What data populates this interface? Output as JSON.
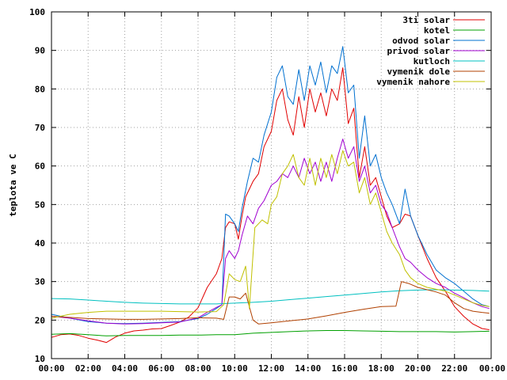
{
  "chart_data": {
    "type": "line",
    "ylabel": "teplota ve C",
    "xlabel": "",
    "title": "",
    "ylim": [
      10,
      100
    ],
    "xlim": [
      0,
      24
    ],
    "grid": true,
    "legend_position": "top-right",
    "y_ticks": [
      "10",
      "20",
      "30",
      "40",
      "50",
      "60",
      "70",
      "80",
      "90",
      "100"
    ],
    "x_ticks": [
      "00:00",
      "02:00",
      "04:00",
      "06:00",
      "08:00",
      "10:00",
      "12:00",
      "14:00",
      "16:00",
      "18:00",
      "20:00",
      "22:00",
      "00:00"
    ],
    "series": [
      {
        "name": "3ti solar",
        "color": "#e00000",
        "points": [
          [
            0,
            15.5
          ],
          [
            0.5,
            16.2
          ],
          [
            1,
            16.4
          ],
          [
            1.5,
            16
          ],
          [
            2,
            15.3
          ],
          [
            2.5,
            14.8
          ],
          [
            3,
            14.2
          ],
          [
            3.5,
            15.6
          ],
          [
            4,
            16.6
          ],
          [
            4.5,
            17.2
          ],
          [
            5,
            17.4
          ],
          [
            5.5,
            17.7
          ],
          [
            6,
            17.8
          ],
          [
            6.5,
            18.6
          ],
          [
            7,
            19.5
          ],
          [
            7.5,
            20.8
          ],
          [
            8,
            23.2
          ],
          [
            8.5,
            28.5
          ],
          [
            9,
            32
          ],
          [
            9.3,
            36
          ],
          [
            9.5,
            44
          ],
          [
            9.7,
            45.5
          ],
          [
            10,
            45
          ],
          [
            10.2,
            41
          ],
          [
            10.4,
            47
          ],
          [
            10.6,
            52
          ],
          [
            11,
            56
          ],
          [
            11.3,
            58
          ],
          [
            11.6,
            65
          ],
          [
            12,
            69
          ],
          [
            12.3,
            77
          ],
          [
            12.6,
            80
          ],
          [
            12.9,
            72
          ],
          [
            13.2,
            68
          ],
          [
            13.5,
            78
          ],
          [
            13.8,
            70
          ],
          [
            14.1,
            80
          ],
          [
            14.4,
            74
          ],
          [
            14.7,
            79
          ],
          [
            15,
            73
          ],
          [
            15.3,
            80
          ],
          [
            15.6,
            77
          ],
          [
            15.9,
            85.5
          ],
          [
            16.2,
            71
          ],
          [
            16.5,
            75
          ],
          [
            16.8,
            57
          ],
          [
            17.1,
            65
          ],
          [
            17.4,
            55
          ],
          [
            17.7,
            57
          ],
          [
            18,
            52
          ],
          [
            18.3,
            47
          ],
          [
            18.6,
            44
          ],
          [
            19,
            45
          ],
          [
            19.3,
            47.5
          ],
          [
            19.6,
            47
          ],
          [
            20,
            42
          ],
          [
            20.5,
            36
          ],
          [
            21,
            31
          ],
          [
            21.5,
            27.5
          ],
          [
            22,
            23.5
          ],
          [
            22.5,
            21
          ],
          [
            23,
            19
          ],
          [
            23.5,
            17.8
          ],
          [
            23.9,
            17.5
          ]
        ]
      },
      {
        "name": "kotel",
        "color": "#00a000",
        "points": [
          [
            0,
            16.3
          ],
          [
            1,
            16.5
          ],
          [
            2,
            16.2
          ],
          [
            3,
            15.9
          ],
          [
            4,
            16
          ],
          [
            5,
            16
          ],
          [
            6,
            16
          ],
          [
            7,
            16.1
          ],
          [
            8,
            16.1
          ],
          [
            9,
            16.2
          ],
          [
            10,
            16.2
          ],
          [
            11,
            16.6
          ],
          [
            12,
            16.8
          ],
          [
            13,
            17
          ],
          [
            14,
            17.2
          ],
          [
            15,
            17.3
          ],
          [
            16,
            17.3
          ],
          [
            17,
            17.2
          ],
          [
            18,
            17.1
          ],
          [
            19,
            17
          ],
          [
            20,
            17
          ],
          [
            21,
            17
          ],
          [
            22,
            16.9
          ],
          [
            23,
            17
          ],
          [
            23.9,
            17.1
          ]
        ]
      },
      {
        "name": "odvod solar",
        "color": "#0070d0",
        "points": [
          [
            0,
            21.5
          ],
          [
            1,
            20.5
          ],
          [
            2,
            19.6
          ],
          [
            3,
            19.2
          ],
          [
            4,
            19.1
          ],
          [
            5,
            19.2
          ],
          [
            6,
            19.4
          ],
          [
            7,
            19.6
          ],
          [
            8,
            20.4
          ],
          [
            8.5,
            21.5
          ],
          [
            9,
            23
          ],
          [
            9.3,
            24
          ],
          [
            9.5,
            47.5
          ],
          [
            9.7,
            47
          ],
          [
            10,
            45
          ],
          [
            10.2,
            43
          ],
          [
            10.4,
            49
          ],
          [
            10.7,
            56
          ],
          [
            11,
            62
          ],
          [
            11.3,
            61
          ],
          [
            11.6,
            68
          ],
          [
            12,
            74
          ],
          [
            12.3,
            83
          ],
          [
            12.6,
            86
          ],
          [
            12.9,
            78
          ],
          [
            13.2,
            76
          ],
          [
            13.5,
            85
          ],
          [
            13.8,
            77
          ],
          [
            14.1,
            86
          ],
          [
            14.4,
            81
          ],
          [
            14.7,
            87
          ],
          [
            15,
            79
          ],
          [
            15.3,
            86
          ],
          [
            15.6,
            84
          ],
          [
            15.9,
            91
          ],
          [
            16.2,
            79
          ],
          [
            16.5,
            81
          ],
          [
            16.8,
            62
          ],
          [
            17.1,
            73
          ],
          [
            17.4,
            60
          ],
          [
            17.7,
            63
          ],
          [
            18,
            57
          ],
          [
            18.3,
            53
          ],
          [
            18.6,
            50
          ],
          [
            19,
            45
          ],
          [
            19.3,
            54
          ],
          [
            19.6,
            47
          ],
          [
            20,
            42
          ],
          [
            20.5,
            37
          ],
          [
            21,
            33
          ],
          [
            21.5,
            31
          ],
          [
            22,
            29.5
          ],
          [
            22.5,
            27.5
          ],
          [
            23,
            25.5
          ],
          [
            23.5,
            24
          ],
          [
            23.9,
            23.5
          ]
        ]
      },
      {
        "name": "privod solar",
        "color": "#a000d0",
        "points": [
          [
            0,
            21
          ],
          [
            1,
            20.5
          ],
          [
            2,
            19.8
          ],
          [
            3,
            19.2
          ],
          [
            4,
            19
          ],
          [
            5,
            19.1
          ],
          [
            6,
            19.3
          ],
          [
            7,
            19.5
          ],
          [
            8,
            20.6
          ],
          [
            8.5,
            22
          ],
          [
            9,
            23.3
          ],
          [
            9.3,
            24
          ],
          [
            9.5,
            36
          ],
          [
            9.7,
            38
          ],
          [
            10,
            36
          ],
          [
            10.2,
            38
          ],
          [
            10.4,
            42
          ],
          [
            10.7,
            47
          ],
          [
            11,
            45
          ],
          [
            11.3,
            49
          ],
          [
            11.6,
            51
          ],
          [
            12,
            55
          ],
          [
            12.3,
            56
          ],
          [
            12.6,
            58
          ],
          [
            12.9,
            57
          ],
          [
            13.2,
            60
          ],
          [
            13.5,
            57
          ],
          [
            13.8,
            62
          ],
          [
            14.1,
            58
          ],
          [
            14.4,
            61
          ],
          [
            14.7,
            56
          ],
          [
            15,
            61
          ],
          [
            15.3,
            56
          ],
          [
            15.6,
            62
          ],
          [
            15.9,
            67
          ],
          [
            16.2,
            62
          ],
          [
            16.5,
            65
          ],
          [
            16.8,
            56
          ],
          [
            17.1,
            60
          ],
          [
            17.4,
            53
          ],
          [
            17.7,
            55
          ],
          [
            18,
            50
          ],
          [
            18.3,
            48
          ],
          [
            18.6,
            44
          ],
          [
            19,
            39
          ],
          [
            19.3,
            36
          ],
          [
            19.6,
            35
          ],
          [
            20,
            33
          ],
          [
            20.5,
            31
          ],
          [
            21,
            29.5
          ],
          [
            21.5,
            28.5
          ],
          [
            22,
            27
          ],
          [
            22.5,
            25.8
          ],
          [
            23,
            24.5
          ],
          [
            23.5,
            23.5
          ],
          [
            23.9,
            23
          ]
        ]
      },
      {
        "name": "kutloch",
        "color": "#00c0c0",
        "points": [
          [
            0,
            25.6
          ],
          [
            1,
            25.5
          ],
          [
            2,
            25.2
          ],
          [
            3,
            24.9
          ],
          [
            4,
            24.6
          ],
          [
            5,
            24.4
          ],
          [
            6,
            24.3
          ],
          [
            7,
            24.2
          ],
          [
            8,
            24.2
          ],
          [
            9,
            24.2
          ],
          [
            10,
            24.4
          ],
          [
            11,
            24.6
          ],
          [
            12,
            24.9
          ],
          [
            13,
            25.3
          ],
          [
            14,
            25.7
          ],
          [
            15,
            26.1
          ],
          [
            16,
            26.5
          ],
          [
            17,
            26.9
          ],
          [
            18,
            27.3
          ],
          [
            19,
            27.6
          ],
          [
            20,
            27.8
          ],
          [
            21,
            27.9
          ],
          [
            22,
            27.8
          ],
          [
            23,
            27.7
          ],
          [
            23.9,
            27.5
          ]
        ]
      },
      {
        "name": "vymenik dole",
        "color": "#b04000",
        "points": [
          [
            0,
            21
          ],
          [
            1,
            20.7
          ],
          [
            2,
            20.4
          ],
          [
            3,
            20.3
          ],
          [
            4,
            20.2
          ],
          [
            5,
            20.2
          ],
          [
            6,
            20.3
          ],
          [
            7,
            20.4
          ],
          [
            8,
            20.6
          ],
          [
            9,
            20.5
          ],
          [
            9.4,
            20.2
          ],
          [
            9.7,
            26
          ],
          [
            10,
            26
          ],
          [
            10.3,
            25.5
          ],
          [
            10.6,
            27
          ],
          [
            11,
            20
          ],
          [
            11.3,
            19
          ],
          [
            12,
            19.3
          ],
          [
            13,
            19.8
          ],
          [
            14,
            20.3
          ],
          [
            15,
            21.1
          ],
          [
            16,
            22
          ],
          [
            17,
            22.8
          ],
          [
            18,
            23.5
          ],
          [
            18.8,
            23.6
          ],
          [
            19.1,
            30
          ],
          [
            19.5,
            29.5
          ],
          [
            20,
            28.5
          ],
          [
            21,
            27.3
          ],
          [
            21.5,
            26.5
          ],
          [
            22,
            24.5
          ],
          [
            22.5,
            23
          ],
          [
            23,
            22.3
          ],
          [
            23.5,
            22
          ],
          [
            23.9,
            21.8
          ]
        ]
      },
      {
        "name": "vymenik nahore",
        "color": "#c0c000",
        "points": [
          [
            0,
            20.5
          ],
          [
            1,
            21.5
          ],
          [
            2,
            22
          ],
          [
            3,
            22.3
          ],
          [
            4,
            22.3
          ],
          [
            5,
            22.3
          ],
          [
            6,
            22.3
          ],
          [
            7,
            22.2
          ],
          [
            8,
            22.1
          ],
          [
            9,
            22.2
          ],
          [
            9.4,
            24
          ],
          [
            9.7,
            32
          ],
          [
            10,
            30.5
          ],
          [
            10.3,
            30
          ],
          [
            10.6,
            34
          ],
          [
            10.8,
            23
          ],
          [
            11.1,
            44
          ],
          [
            11.5,
            46
          ],
          [
            11.8,
            45
          ],
          [
            12,
            50
          ],
          [
            12.3,
            52
          ],
          [
            12.6,
            58
          ],
          [
            12.9,
            60
          ],
          [
            13.2,
            63
          ],
          [
            13.5,
            57
          ],
          [
            13.8,
            55
          ],
          [
            14.1,
            62
          ],
          [
            14.4,
            55
          ],
          [
            14.7,
            62
          ],
          [
            15,
            57
          ],
          [
            15.3,
            63
          ],
          [
            15.6,
            58
          ],
          [
            15.9,
            64
          ],
          [
            16.2,
            60
          ],
          [
            16.5,
            61
          ],
          [
            16.8,
            53
          ],
          [
            17.1,
            57
          ],
          [
            17.4,
            50
          ],
          [
            17.7,
            53
          ],
          [
            18,
            48
          ],
          [
            18.3,
            43
          ],
          [
            18.6,
            40
          ],
          [
            19,
            37
          ],
          [
            19.3,
            33
          ],
          [
            19.6,
            31
          ],
          [
            20,
            29.5
          ],
          [
            20.5,
            28.5
          ],
          [
            21,
            28
          ],
          [
            21.5,
            27.5
          ],
          [
            22,
            26.5
          ],
          [
            22.5,
            25.5
          ],
          [
            23,
            24.5
          ],
          [
            23.5,
            23.8
          ],
          [
            23.9,
            23.5
          ]
        ]
      }
    ]
  }
}
